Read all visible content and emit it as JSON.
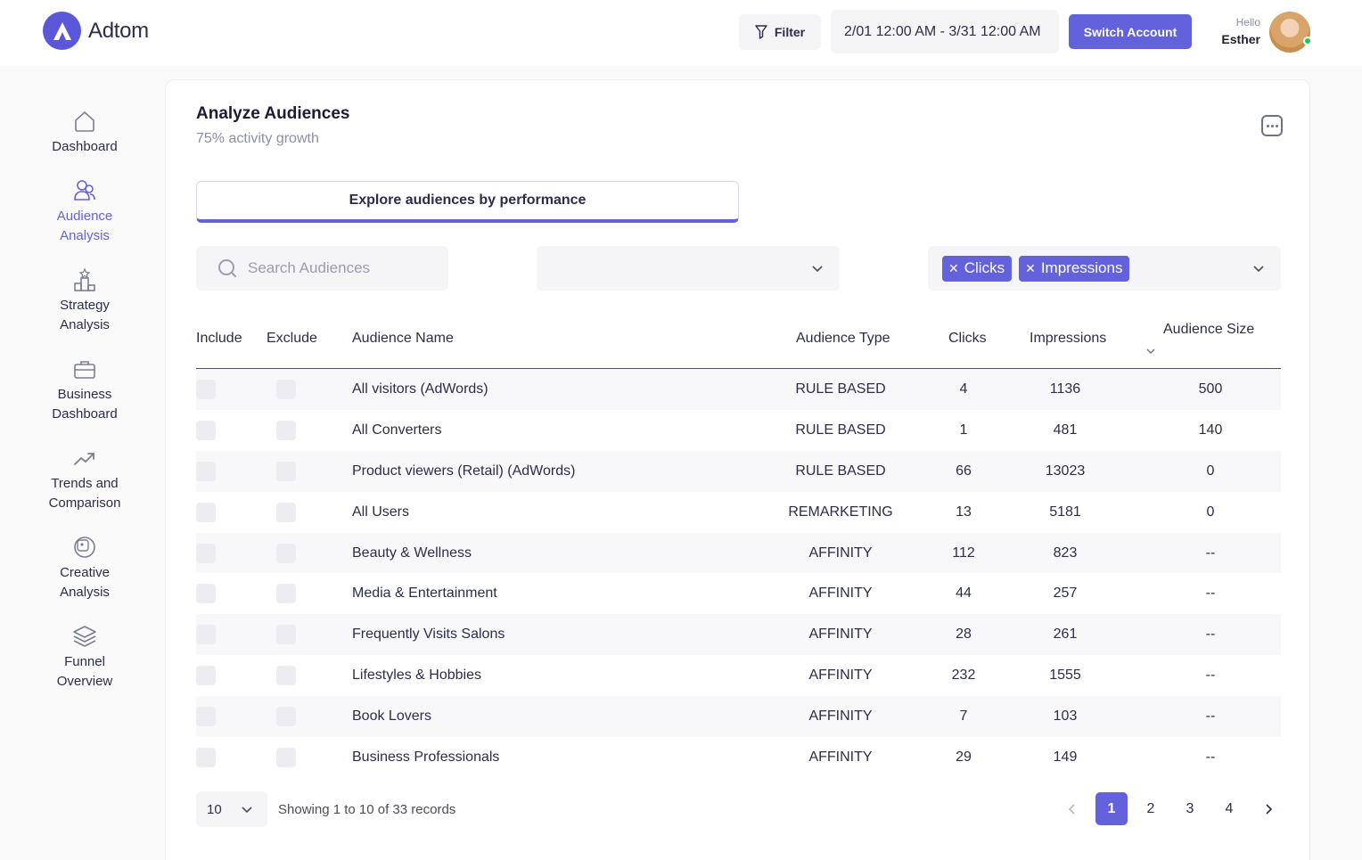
{
  "brand": {
    "name": "Adtom",
    "accent": "#6361dc"
  },
  "header": {
    "filter_label": "Filter",
    "date_range": "2/01 12:00 AM - 3/31 12:00 AM",
    "switch_account_label": "Switch Account",
    "greeting": "Hello",
    "user_name": "Esther"
  },
  "sidebar": {
    "items": [
      {
        "label": "Dashboard",
        "icon": "home-icon",
        "active": false
      },
      {
        "label": "Audience Analysis",
        "icon": "users-icon",
        "active": true
      },
      {
        "label": "Strategy Analysis",
        "icon": "strategy-icon",
        "active": false
      },
      {
        "label": "Business Dashboard",
        "icon": "briefcase-icon",
        "active": false
      },
      {
        "label": "Trends and Comparison",
        "icon": "trend-up-icon",
        "active": false
      },
      {
        "label": "Creative Analysis",
        "icon": "palette-icon",
        "active": false
      },
      {
        "label": "Funnel Overview",
        "icon": "layers-icon",
        "active": false
      }
    ]
  },
  "main": {
    "title": "Analyze Audiences",
    "subtitle": "75% activity growth",
    "tab_label": "Explore audiences by performance",
    "search_placeholder": "Search Audiences",
    "selected_metrics": [
      "Clicks",
      "Impressions"
    ],
    "table": {
      "headers": {
        "include": "Include",
        "exclude": "Exclude",
        "name": "Audience Name",
        "type": "Audience Type",
        "clicks": "Clicks",
        "impressions": "Impressions",
        "size": "Audience Size"
      },
      "rows": [
        {
          "name": "All visitors (AdWords)",
          "type": "RULE BASED",
          "clicks": "4",
          "impressions": "1136",
          "size": "500"
        },
        {
          "name": "All Converters",
          "type": "RULE BASED",
          "clicks": "1",
          "impressions": "481",
          "size": "140"
        },
        {
          "name": "Product viewers (Retail) (AdWords)",
          "type": "RULE BASED",
          "clicks": "66",
          "impressions": "13023",
          "size": "0"
        },
        {
          "name": "All Users",
          "type": "REMARKETING",
          "clicks": "13",
          "impressions": "5181",
          "size": "0"
        },
        {
          "name": "Beauty & Wellness",
          "type": "AFFINITY",
          "clicks": "112",
          "impressions": "823",
          "size": "--"
        },
        {
          "name": "Media & Entertainment",
          "type": "AFFINITY",
          "clicks": "44",
          "impressions": "257",
          "size": "--"
        },
        {
          "name": "Frequently Visits Salons",
          "type": "AFFINITY",
          "clicks": "28",
          "impressions": "261",
          "size": "--"
        },
        {
          "name": "Lifestyles & Hobbies",
          "type": "AFFINITY",
          "clicks": "232",
          "impressions": "1555",
          "size": "--"
        },
        {
          "name": "Book Lovers",
          "type": "AFFINITY",
          "clicks": "7",
          "impressions": "103",
          "size": "--"
        },
        {
          "name": "Business Professionals",
          "type": "AFFINITY",
          "clicks": "29",
          "impressions": "149",
          "size": "--"
        }
      ]
    },
    "page_size": "10",
    "records_info": "Showing 1 to 10 of 33 records",
    "pages": [
      "1",
      "2",
      "3",
      "4"
    ],
    "current_page": "1"
  }
}
